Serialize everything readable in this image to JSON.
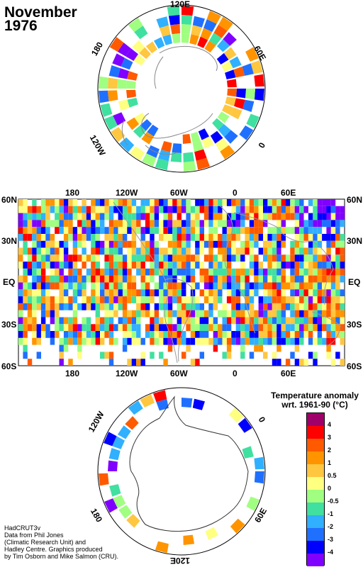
{
  "title": "November\n1976",
  "title_line1": "November",
  "title_line2": "1976",
  "map_labels": {
    "top": [
      "180",
      "120W",
      "60W",
      "0",
      "60E"
    ],
    "bottom": [
      "180",
      "120W",
      "60W",
      "0",
      "60E"
    ],
    "left": [
      "60N",
      "30N",
      "EQ",
      "30S",
      "60S"
    ],
    "right": [
      "60N",
      "30N",
      "EQ",
      "30S",
      "60S"
    ]
  },
  "north_polar_labels": {
    "top": "120E",
    "right": "60E",
    "left": "180",
    "bottom_right": "0",
    "bottom_left": "120W"
  },
  "south_polar_labels": {
    "top_left": "120W",
    "top_right": "0",
    "bottom_left": "180",
    "bottom_right": "60E",
    "bottom": "120E"
  },
  "legend": {
    "title_line1": "Temperature anomaly",
    "title_line2": "wrt. 1961-90  (°C)",
    "ticks": [
      "4",
      "3",
      "2",
      "1",
      "0.5",
      "0",
      "-0.5",
      "-1",
      "-2",
      "-3",
      "-4"
    ],
    "colors": [
      "#a0006a",
      "#ff0000",
      "#ff5a00",
      "#ff9400",
      "#ffc640",
      "#ffff80",
      "#a0ff80",
      "#40e0a0",
      "#30b0ff",
      "#2070ff",
      "#0000ff",
      "#8000ff"
    ]
  },
  "credit": {
    "lines": [
      "HadCRUT3v",
      "Data from Phil Jones",
      "(Climatic Research Unit) and",
      "Hadley Centre.  Graphics produced",
      "by Tim Osborn and Mike Salmon (CRU)."
    ]
  }
}
